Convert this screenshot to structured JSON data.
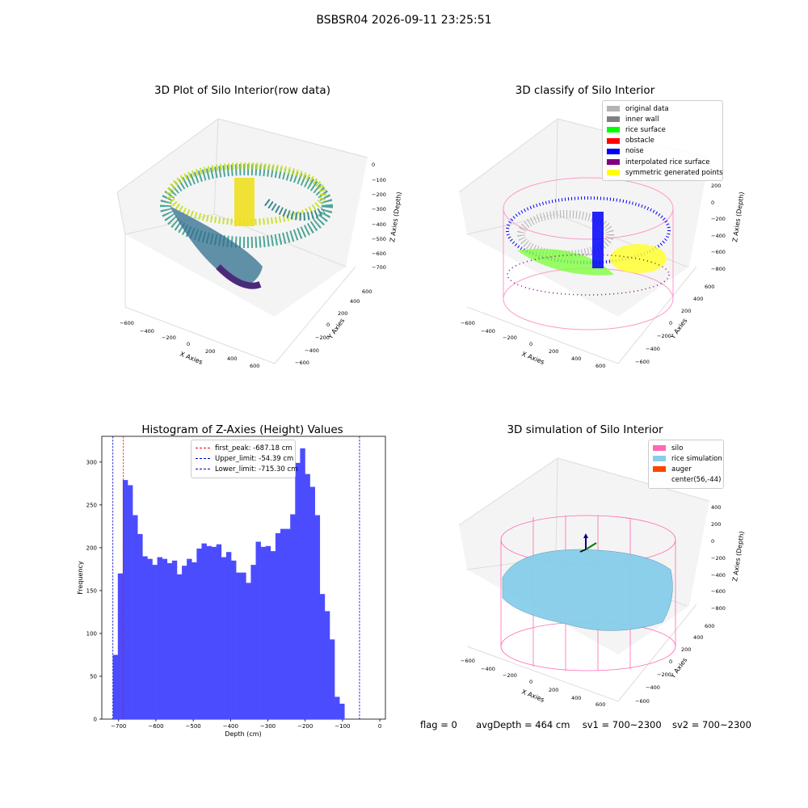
{
  "suptitle": "BSBSR04 2026-09-11 23:25:51",
  "panels": {
    "raw": {
      "title": "3D Plot of Silo Interior(row data)",
      "x_label": "X Axies",
      "y_label": "Y Axies",
      "z_label": "Z Axies (Depth)",
      "x_ticks": [
        "−600",
        "−400",
        "−200",
        "0",
        "200",
        "400",
        "600"
      ],
      "y_ticks": [
        "−600",
        "−400",
        "−200",
        "0",
        "200",
        "400",
        "600"
      ],
      "z_ticks": [
        "0",
        "−100",
        "−200",
        "−300",
        "−400",
        "−500",
        "−600",
        "−700"
      ]
    },
    "classify": {
      "title": "3D classify of Silo Interior",
      "x_label": "X Axies",
      "y_label": "Y Axies",
      "z_label": "Z Axies (Depth)",
      "x_ticks": [
        "−600",
        "−400",
        "−200",
        "0",
        "200",
        "400",
        "600"
      ],
      "y_ticks": [
        "−600",
        "−400",
        "−200",
        "0",
        "200",
        "400",
        "600"
      ],
      "z_ticks": [
        "200",
        "0",
        "−200",
        "−400",
        "−600",
        "−800"
      ],
      "legend": [
        {
          "label": "original data",
          "color": "#b3b3b3"
        },
        {
          "label": "inner wall",
          "color": "#808080"
        },
        {
          "label": "rice surface",
          "color": "#00ff00"
        },
        {
          "label": "obstacle",
          "color": "#ff0000"
        },
        {
          "label": "noise",
          "color": "#0000ff"
        },
        {
          "label": "interpolated rice surface",
          "color": "#800080"
        },
        {
          "label": "symmetric generated points",
          "color": "#ffff00"
        }
      ]
    },
    "simulation": {
      "title": "3D simulation of Silo Interior",
      "x_label": "X Axies",
      "y_label": "Y Axies",
      "z_label": "Z Axies (Depth)",
      "x_ticks": [
        "−600",
        "−400",
        "−200",
        "0",
        "200",
        "400",
        "600"
      ],
      "y_ticks": [
        "−600",
        "−400",
        "−200",
        "0",
        "200",
        "400",
        "600"
      ],
      "z_ticks": [
        "400",
        "200",
        "0",
        "−200",
        "−400",
        "−600",
        "−800"
      ],
      "legend": [
        {
          "label": "silo",
          "color": "#ff69b4"
        },
        {
          "label": "rice simulation",
          "color": "#87ceeb"
        },
        {
          "label": "auger",
          "color": "#ff4500"
        },
        {
          "label": "center(56,-44)",
          "color": ""
        }
      ]
    }
  },
  "footer": {
    "flag": "flag = 0",
    "avg_depth": "avgDepth = 464 cm",
    "sv1": "sv1 = 700~2300",
    "sv2": "sv2 = 700~2300"
  },
  "chart_data": [
    {
      "type": "histogram",
      "title": "Histogram of Z-Axies (Height) Values",
      "xlabel": "Depth (cm)",
      "ylabel": "Frequency",
      "xlim": [
        -745,
        15
      ],
      "ylim": [
        0,
        330
      ],
      "x_ticks": [
        -700,
        -600,
        -500,
        -400,
        -300,
        -200,
        -100,
        0
      ],
      "x_tick_labels": [
        "−700",
        "−600",
        "−500",
        "−400",
        "−300",
        "−200",
        "−100",
        "0"
      ],
      "y_ticks": [
        0,
        50,
        100,
        150,
        200,
        250,
        300
      ],
      "bin_start": -715.3,
      "bin_width": 13.2,
      "counts": [
        75,
        170,
        279,
        273,
        238,
        216,
        190,
        187,
        180,
        189,
        187,
        182,
        185,
        169,
        179,
        187,
        183,
        199,
        205,
        202,
        201,
        204,
        189,
        195,
        185,
        171,
        171,
        159,
        180,
        207,
        201,
        202,
        196,
        217,
        222,
        222,
        239,
        299,
        316,
        286,
        271,
        238,
        146,
        126,
        93,
        26,
        18
      ],
      "bar_color": "#4c4cff",
      "lines": [
        {
          "label": "first_peak: -687.18 cm",
          "x": -687.18,
          "color": "#ff0000"
        },
        {
          "label": "Upper_limit: -54.39 cm",
          "x": -54.39,
          "color": "#0000cc"
        },
        {
          "label": "Lower_limit: -715.30 cm",
          "x": -715.3,
          "color": "#0000cc"
        }
      ],
      "legend_position": "top-center"
    }
  ]
}
